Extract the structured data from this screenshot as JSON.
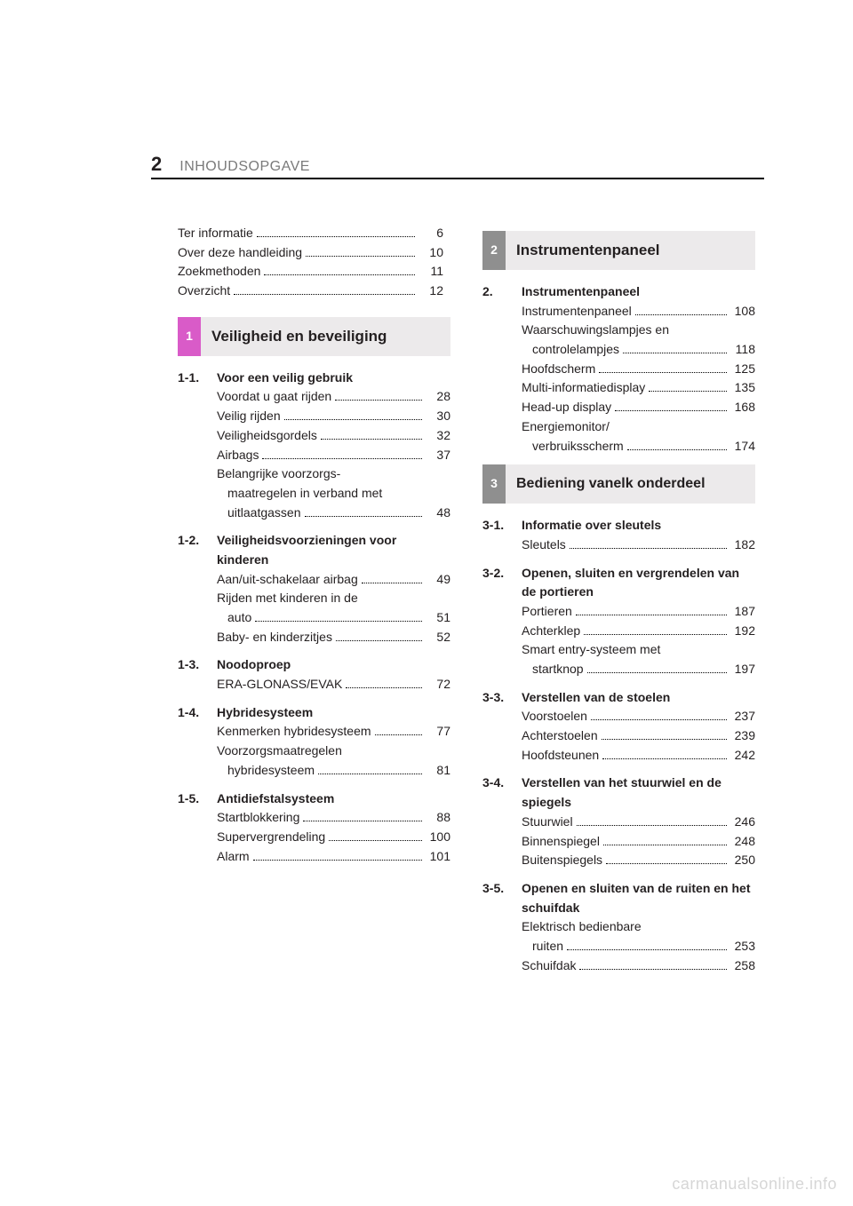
{
  "page_number": "2",
  "header_title": "INHOUDSOPGAVE",
  "intro": [
    {
      "label": "Ter informatie",
      "page": "6"
    },
    {
      "label": "Over deze handleiding",
      "page": "10"
    },
    {
      "label": "Zoekmethoden",
      "page": "11"
    },
    {
      "label": "Overzicht",
      "page": "12"
    }
  ],
  "sections": [
    {
      "index": "1",
      "title": "Veiligheid en beveiliging",
      "tab_color": "#d95bc8",
      "groups": [
        {
          "num": "1-1.",
          "title": "Voor een veilig gebruik",
          "entries": [
            {
              "label": "Voordat u gaat rijden",
              "page": "28"
            },
            {
              "label": "Veilig rijden",
              "page": "30"
            },
            {
              "label": "Veiligheidsgordels",
              "page": "32"
            },
            {
              "label": "Airbags",
              "page": "37"
            },
            {
              "label": "Belangrijke voorzorgs-\nmaatregelen in verband met\nuitlaatgassen",
              "page": "48"
            }
          ]
        },
        {
          "num": "1-2.",
          "title": "Veiligheidsvoorzieningen voor kinderen",
          "entries": [
            {
              "label": "Aan/uit-schakelaar airbag",
              "page": "49"
            },
            {
              "label": "Rijden met kinderen in de\nauto",
              "page": "51"
            },
            {
              "label": "Baby- en kinderzitjes",
              "page": "52"
            }
          ]
        },
        {
          "num": "1-3.",
          "title": "Noodoproep",
          "entries": [
            {
              "label": "ERA-GLONASS/EVAK",
              "page": "72"
            }
          ]
        },
        {
          "num": "1-4.",
          "title": "Hybridesysteem",
          "entries": [
            {
              "label": "Kenmerken hybridesysteem",
              "page": "77"
            },
            {
              "label": "Voorzorgsmaatregelen\nhybridesysteem",
              "page": "81"
            }
          ]
        },
        {
          "num": "1-5.",
          "title": "Antidiefstalsysteem",
          "entries": [
            {
              "label": "Startblokkering",
              "page": "88"
            },
            {
              "label": "Supervergrendeling",
              "page": "100"
            },
            {
              "label": "Alarm",
              "page": "101"
            }
          ]
        }
      ]
    },
    {
      "index": "2",
      "title": "Instrumentenpaneel",
      "tab_color": "#8f8f8f",
      "groups": [
        {
          "num": "2.",
          "title": "Instrumentenpaneel",
          "entries": [
            {
              "label": "Instrumentenpaneel",
              "page": "108"
            },
            {
              "label": "Waarschuwingslampjes en\ncontrolelampjes",
              "page": "118"
            },
            {
              "label": "Hoofdscherm",
              "page": "125"
            },
            {
              "label": "Multi-informatiedisplay",
              "page": "135"
            },
            {
              "label": "Head-up display",
              "page": "168"
            },
            {
              "label": "Energiemonitor/\nverbruiksscherm",
              "page": "174"
            }
          ]
        }
      ]
    },
    {
      "index": "3",
      "title": "Bediening van\nelk onderdeel",
      "tab_color": "#8f8f8f",
      "groups": [
        {
          "num": "3-1.",
          "title": "Informatie over sleutels",
          "entries": [
            {
              "label": "Sleutels",
              "page": "182"
            }
          ]
        },
        {
          "num": "3-2.",
          "title": "Openen, sluiten en vergrendelen van de portieren",
          "entries": [
            {
              "label": "Portieren",
              "page": "187"
            },
            {
              "label": "Achterklep",
              "page": "192"
            },
            {
              "label": "Smart entry-systeem met\nstartknop",
              "page": "197"
            }
          ]
        },
        {
          "num": "3-3.",
          "title": "Verstellen van de stoelen",
          "entries": [
            {
              "label": "Voorstoelen",
              "page": "237"
            },
            {
              "label": "Achterstoelen",
              "page": "239"
            },
            {
              "label": "Hoofdsteunen",
              "page": "242"
            }
          ]
        },
        {
          "num": "3-4.",
          "title": "Verstellen van het stuurwiel en de spiegels",
          "entries": [
            {
              "label": "Stuurwiel",
              "page": "246"
            },
            {
              "label": "Binnenspiegel",
              "page": "248"
            },
            {
              "label": "Buitenspiegels",
              "page": "250"
            }
          ]
        },
        {
          "num": "3-5.",
          "title": "Openen en sluiten van de ruiten en het schuifdak",
          "entries": [
            {
              "label": "Elektrisch bedienbare\nruiten",
              "page": "253"
            },
            {
              "label": "Schuifdak",
              "page": "258"
            }
          ]
        }
      ]
    }
  ],
  "watermark": "carmanualsonline.info"
}
